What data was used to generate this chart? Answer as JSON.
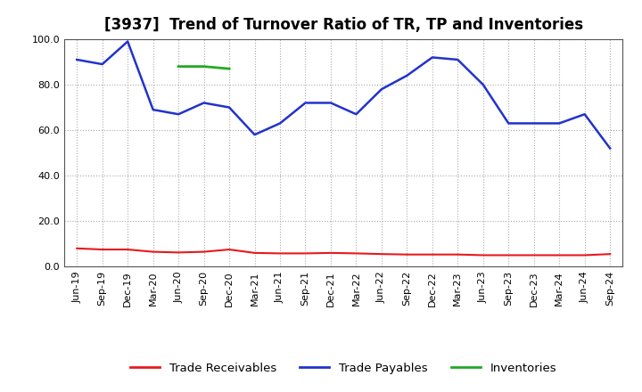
{
  "title": "[3937]  Trend of Turnover Ratio of TR, TP and Inventories",
  "x_labels": [
    "Jun-19",
    "Sep-19",
    "Dec-19",
    "Mar-20",
    "Jun-20",
    "Sep-20",
    "Dec-20",
    "Mar-21",
    "Jun-21",
    "Sep-21",
    "Dec-21",
    "Mar-22",
    "Jun-22",
    "Sep-22",
    "Dec-22",
    "Mar-23",
    "Jun-23",
    "Sep-23",
    "Dec-23",
    "Mar-24",
    "Jun-24",
    "Sep-24"
  ],
  "trade_receivables": [
    8.0,
    7.5,
    7.5,
    6.5,
    6.2,
    6.5,
    7.5,
    6.0,
    5.8,
    5.8,
    6.0,
    5.8,
    5.5,
    5.3,
    5.3,
    5.3,
    5.0,
    5.0,
    5.0,
    5.0,
    5.0,
    5.5
  ],
  "trade_payables": [
    91.0,
    89.0,
    99.0,
    69.0,
    67.0,
    72.0,
    70.0,
    58.0,
    63.0,
    72.0,
    72.0,
    67.0,
    78.0,
    84.0,
    92.0,
    91.0,
    80.0,
    63.0,
    63.0,
    63.0,
    67.0,
    52.0
  ],
  "inventories": [
    null,
    null,
    null,
    null,
    88.0,
    88.0,
    87.0,
    null,
    null,
    null,
    null,
    null,
    null,
    null,
    null,
    null,
    null,
    null,
    null,
    null,
    null,
    null
  ],
  "ylim": [
    0.0,
    100.0
  ],
  "yticks": [
    0.0,
    20.0,
    40.0,
    60.0,
    80.0,
    100.0
  ],
  "line_colors": {
    "trade_receivables": "#e8191c",
    "trade_payables": "#2233cc",
    "inventories": "#22aa22"
  },
  "legend_labels": [
    "Trade Receivables",
    "Trade Payables",
    "Inventories"
  ],
  "background_color": "#ffffff",
  "plot_bg_color": "#ffffff",
  "grid_color": "#aaaaaa",
  "title_fontsize": 12,
  "tick_fontsize": 8,
  "legend_fontsize": 9.5
}
